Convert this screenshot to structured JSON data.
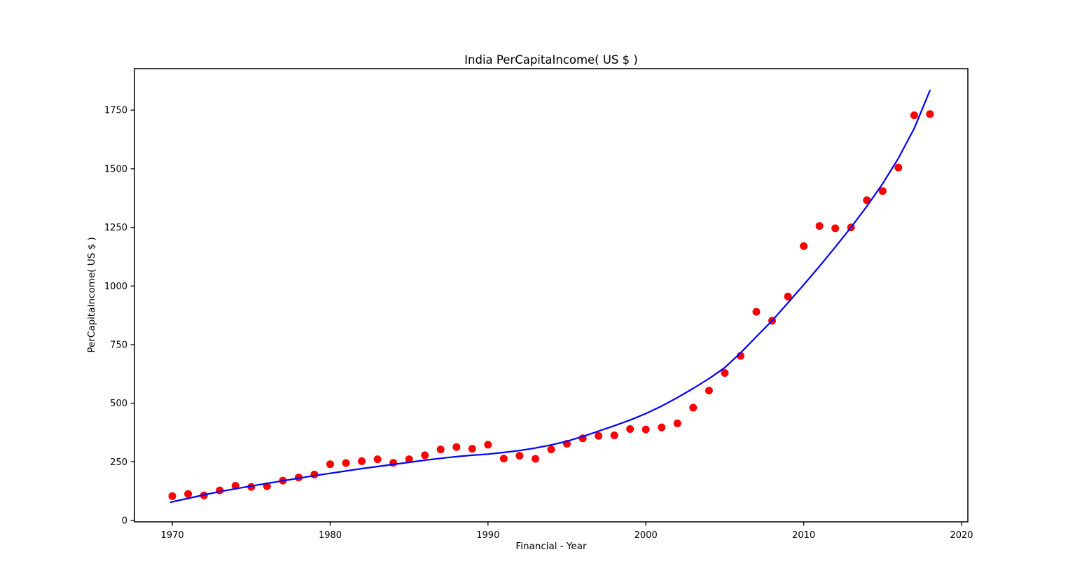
{
  "chart": {
    "title": "India PerCapitaIncome( US $ )",
    "xlabel": "Financial - Year",
    "ylabel": "PerCapitaIncome( US $ )"
  },
  "colors": {
    "scatter_points": "#ff0000",
    "fit_line": "#0000ff",
    "axis": "#000000",
    "background": "#ffffff"
  },
  "chart_data": {
    "type": "scatter",
    "title": "India PerCapitaIncome( US $ )",
    "xlabel": "Financial - Year",
    "ylabel": "PerCapitaIncome( US $ )",
    "grid": false,
    "legend": "none",
    "xlim": [
      1967.6,
      2020.4
    ],
    "ylim": [
      -6,
      1927
    ],
    "x_ticks": [
      1970,
      1980,
      1990,
      2000,
      2010,
      2020
    ],
    "y_ticks": [
      0,
      250,
      500,
      750,
      1000,
      1250,
      1500,
      1750
    ],
    "series": [
      {
        "name": "per-capita-income-points",
        "kind": "scatter",
        "color": "#ff0000",
        "marker": "circle",
        "x": [
          1970,
          1971,
          1972,
          1973,
          1974,
          1975,
          1976,
          1977,
          1978,
          1979,
          1980,
          1981,
          1982,
          1983,
          1984,
          1985,
          1986,
          1987,
          1988,
          1989,
          1990,
          1991,
          1992,
          1993,
          1994,
          1995,
          1996,
          1997,
          1998,
          1999,
          2000,
          2001,
          2002,
          2003,
          2004,
          2005,
          2006,
          2007,
          2008,
          2009,
          2010,
          2011,
          2012,
          2013,
          2014,
          2015,
          2016,
          2017,
          2018
        ],
        "y": [
          104,
          113,
          107,
          128,
          148,
          143,
          146,
          170,
          183,
          196,
          240,
          245,
          253,
          261,
          246,
          261,
          278,
          303,
          313,
          306,
          323,
          264,
          276,
          263,
          303,
          327,
          350,
          361,
          363,
          390,
          388,
          397,
          414,
          481,
          554,
          629,
          702,
          890,
          852,
          955,
          1170,
          1256,
          1246,
          1250,
          1366,
          1405,
          1505,
          1728,
          1733
        ]
      },
      {
        "name": "polynomial-fit-curve",
        "kind": "line",
        "color": "#0000ff",
        "x": [
          1969.9,
          1971,
          1972,
          1973,
          1974,
          1975,
          1976,
          1977,
          1978,
          1979,
          1980,
          1981,
          1982,
          1983,
          1984,
          1985,
          1986,
          1987,
          1988,
          1989,
          1990,
          1991,
          1992,
          1993,
          1994,
          1995,
          1996,
          1997,
          1998,
          1999,
          2000,
          2001,
          2002,
          2003,
          2004,
          2005,
          2006,
          2007,
          2008,
          2009,
          2010,
          2011,
          2012,
          2013,
          2014,
          2015,
          2016,
          2017,
          2018
        ],
        "y": [
          78,
          94,
          109,
          123,
          135,
          147,
          158,
          169,
          180,
          191,
          201,
          211,
          221,
          230,
          239,
          248,
          257,
          265,
          272,
          278,
          283,
          290,
          298,
          309,
          322,
          338,
          358,
          381,
          404,
          428,
          456,
          488,
          524,
          563,
          605,
          652,
          715,
          784,
          852,
          928,
          1005,
          1084,
          1166,
          1250,
          1340,
          1436,
          1545,
          1672,
          1834
        ]
      }
    ]
  }
}
